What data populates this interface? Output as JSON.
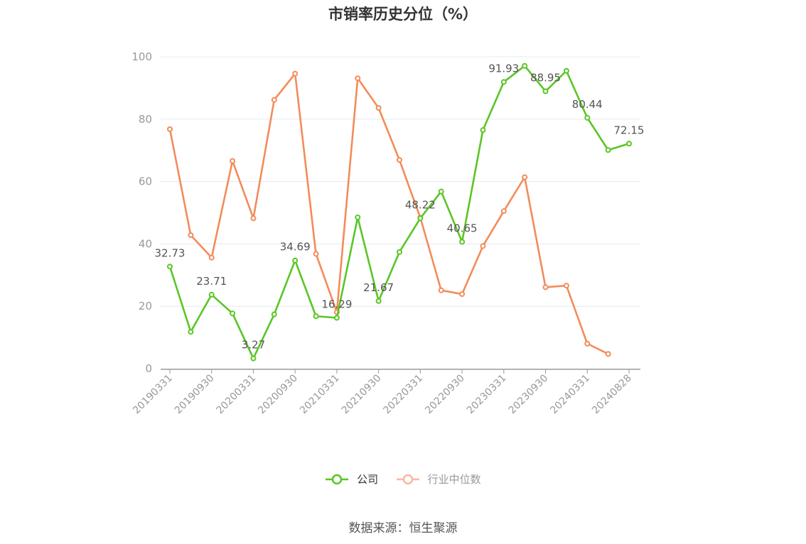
{
  "title": "市销率历史分位（%）",
  "source": "数据来源：恒生聚源",
  "legend": {
    "company_label": "公司",
    "industry_label": "行业中位数"
  },
  "colors": {
    "company": "#5ac625",
    "industry": "#f28c5a",
    "industry_legend": "#f7b8a0",
    "grid": "#e6e8ef",
    "axis": "#999999",
    "tick_text": "#999999",
    "label_text": "#555555"
  },
  "chart_data": {
    "type": "line",
    "title": "市销率历史分位（%）",
    "xlabel": "",
    "ylabel": "",
    "ylim": [
      0,
      100
    ],
    "yticks": [
      0,
      20,
      40,
      60,
      80,
      100
    ],
    "grid": true,
    "legend_position": "bottom",
    "x": [
      "20190331",
      "20190630",
      "20190930",
      "20191231",
      "20200331",
      "20200630",
      "20200930",
      "20201231",
      "20210331",
      "20210630",
      "20210930",
      "20211231",
      "20220331",
      "20220630",
      "20220930",
      "20221231",
      "20230331",
      "20230630",
      "20230930",
      "20231231",
      "20240331",
      "20240630",
      "20240828"
    ],
    "x_tick_labels": [
      "20190331",
      "20190930",
      "20200331",
      "20200930",
      "20210331",
      "20210930",
      "20220331",
      "20220930",
      "20230331",
      "20230930",
      "20240331",
      "20240828"
    ],
    "series": [
      {
        "name": "公司",
        "values": [
          32.73,
          11.8,
          23.71,
          17.7,
          3.27,
          17.4,
          34.69,
          16.8,
          16.29,
          48.5,
          21.67,
          37.4,
          48.22,
          56.8,
          40.65,
          76.5,
          91.93,
          97.1,
          88.95,
          95.5,
          80.44,
          70.1,
          72.15
        ],
        "data_labels": [
          {
            "index": 0,
            "text": "32.73"
          },
          {
            "index": 2,
            "text": "23.71"
          },
          {
            "index": 4,
            "text": "3.27"
          },
          {
            "index": 6,
            "text": "34.69"
          },
          {
            "index": 8,
            "text": "16.29"
          },
          {
            "index": 10,
            "text": "21.67"
          },
          {
            "index": 12,
            "text": "48.22"
          },
          {
            "index": 14,
            "text": "40.65"
          },
          {
            "index": 16,
            "text": "91.93"
          },
          {
            "index": 18,
            "text": "88.95"
          },
          {
            "index": 20,
            "text": "80.44"
          },
          {
            "index": 22,
            "text": "72.15"
          }
        ]
      },
      {
        "name": "行业中位数",
        "values": [
          76.8,
          42.8,
          35.6,
          66.6,
          48.2,
          86.2,
          94.6,
          36.8,
          18.1,
          93.1,
          83.6,
          66.9,
          48.4,
          25.1,
          23.9,
          39.3,
          50.5,
          61.4,
          26.1,
          26.6,
          8.0,
          4.7,
          null
        ]
      }
    ]
  }
}
